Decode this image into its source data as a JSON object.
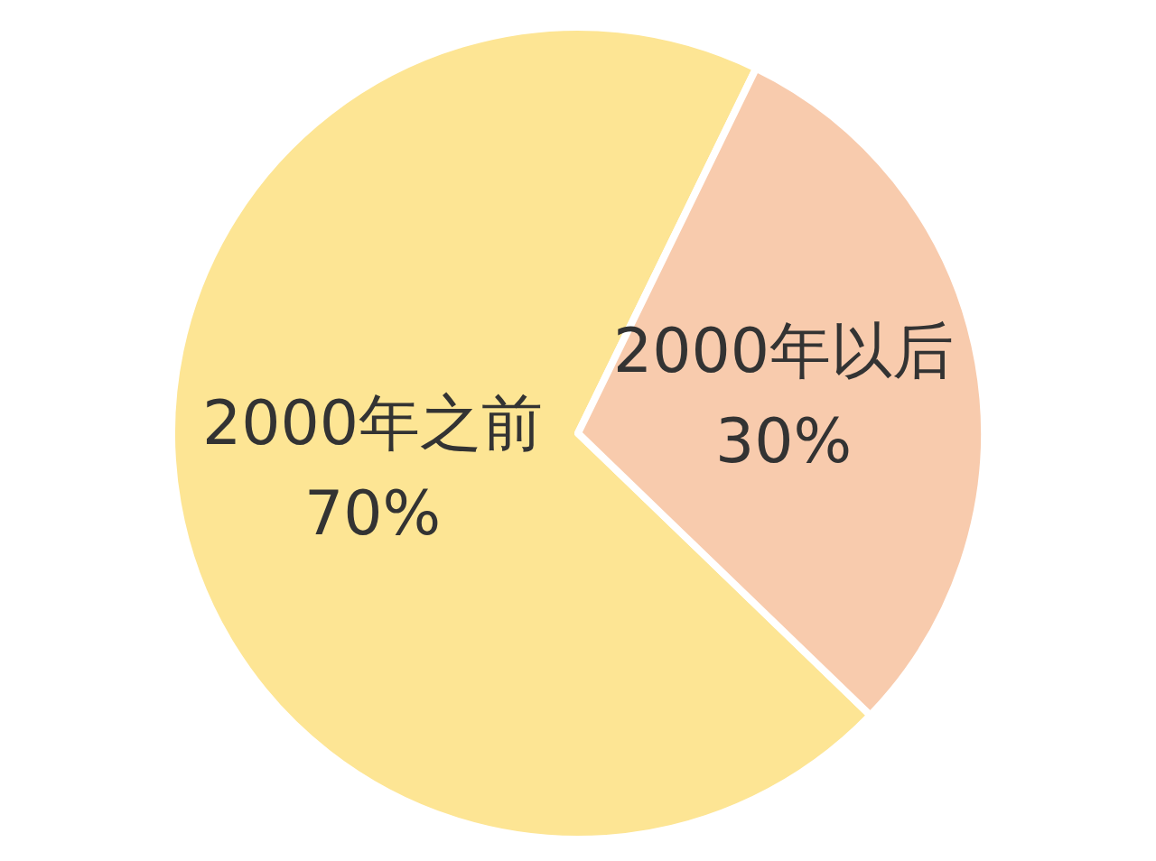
{
  "chart_data": {
    "type": "pie",
    "categories": [
      "2000年之前",
      "2000年以后"
    ],
    "values": [
      70,
      30
    ],
    "value_labels": [
      "70%",
      "30%"
    ],
    "colors": [
      "#fde594",
      "#f8cbad"
    ],
    "legend": false
  }
}
